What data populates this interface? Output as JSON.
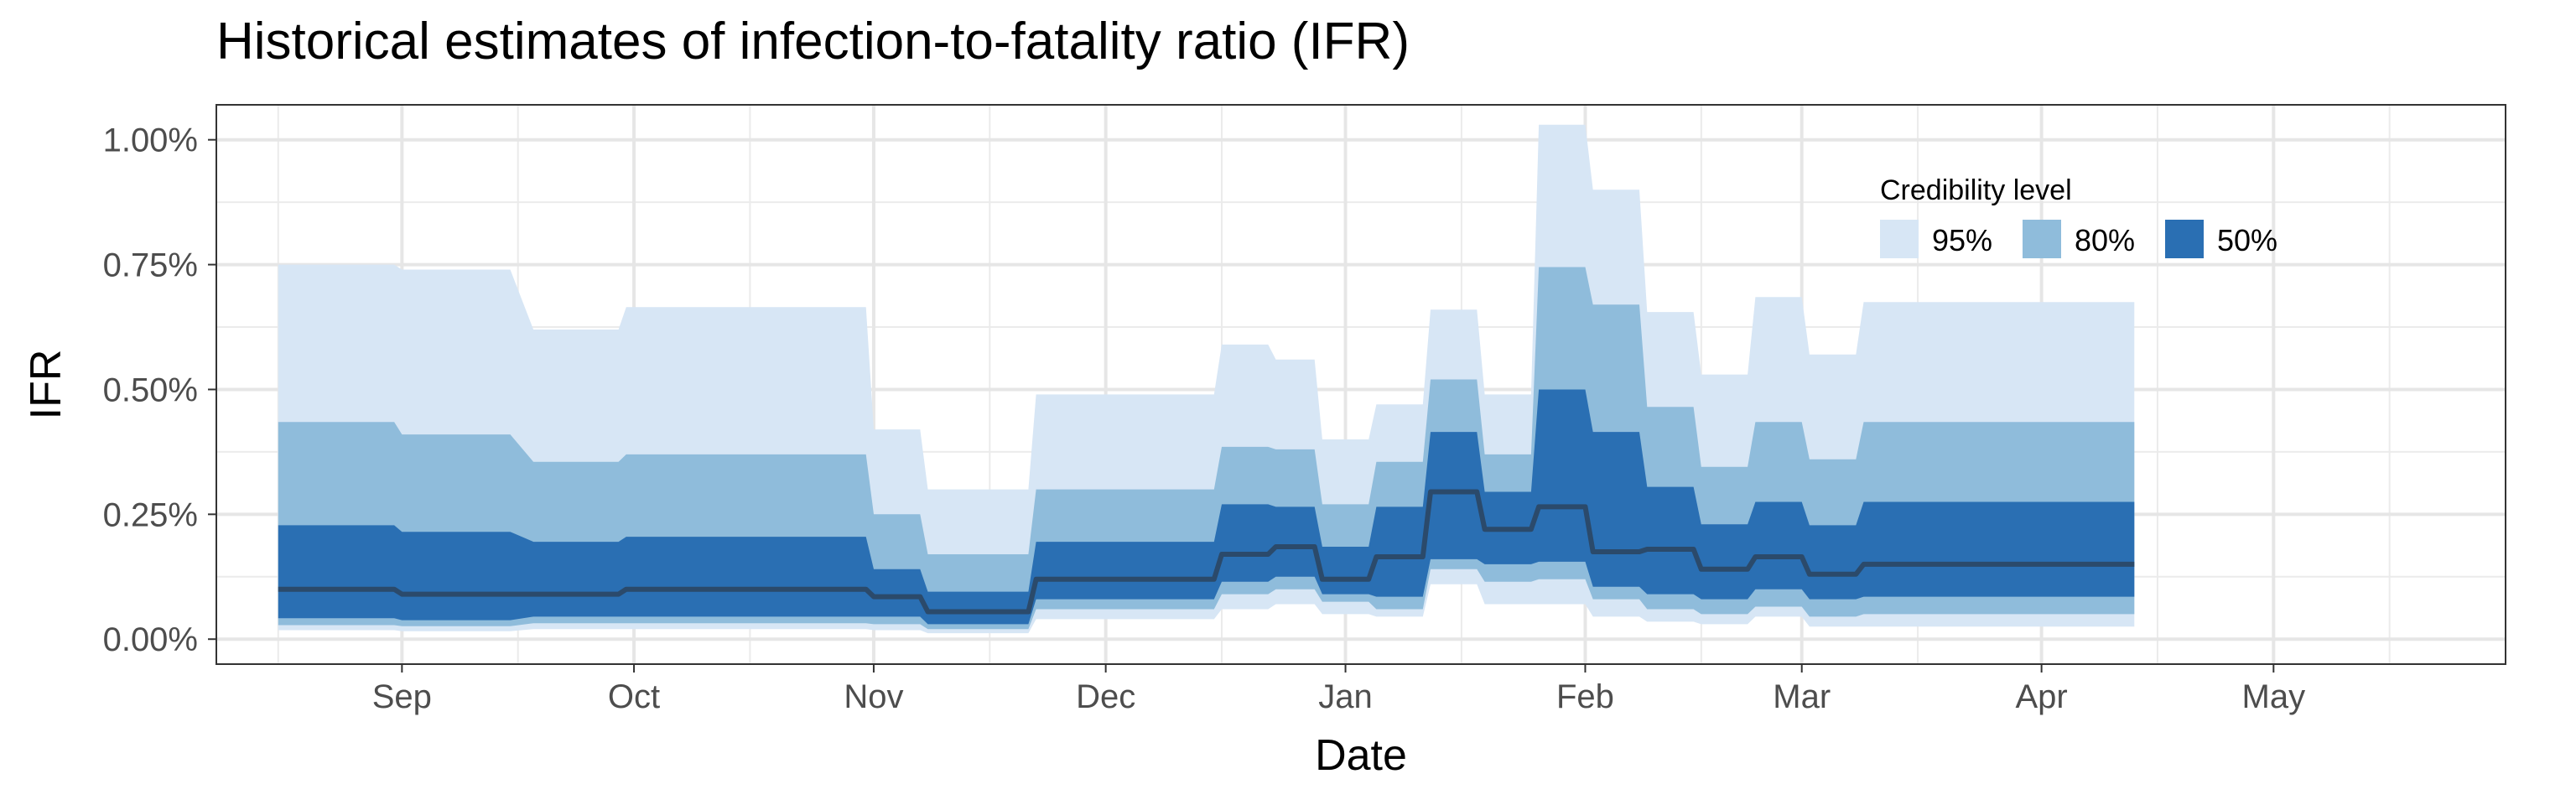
{
  "chart_data": {
    "type": "area",
    "title": "Historical estimates of infection-to-fatality ratio (IFR)",
    "xlabel": "Date",
    "ylabel": "IFR",
    "x_ticks": [
      "Sep",
      "Oct",
      "Nov",
      "Dec",
      "Jan",
      "Feb",
      "Mar",
      "Apr",
      "May"
    ],
    "y_ticks": [
      "0.00%",
      "0.25%",
      "0.50%",
      "0.75%",
      "1.00%"
    ],
    "y_tick_values": [
      0,
      0.25,
      0.5,
      0.75,
      1.0
    ],
    "ylim": [
      -0.05,
      1.07
    ],
    "xlim": [
      "2020-08-08",
      "2021-05-31"
    ],
    "grid": true,
    "legend": {
      "title": "Credibility level",
      "placement": "top-right",
      "entries": [
        {
          "label": "95%",
          "color": "#d7e6f5"
        },
        {
          "label": "80%",
          "color": "#8fbcdb"
        },
        {
          "label": "50%",
          "color": "#2a6fb3"
        }
      ]
    },
    "median_color": "#2b4a6b",
    "x": [
      "2020-08-16",
      "2020-08-31",
      "2020-09-01",
      "2020-09-15",
      "2020-09-18",
      "2020-09-29",
      "2020-09-30",
      "2020-10-31",
      "2020-11-01",
      "2020-11-07",
      "2020-11-08",
      "2020-11-21",
      "2020-11-22",
      "2020-12-15",
      "2020-12-16",
      "2020-12-22",
      "2020-12-23",
      "2020-12-28",
      "2020-12-29",
      "2021-01-04",
      "2021-01-05",
      "2021-01-11",
      "2021-01-12",
      "2021-01-18",
      "2021-01-19",
      "2021-01-25",
      "2021-01-26",
      "2021-02-01",
      "2021-02-02",
      "2021-02-08",
      "2021-02-09",
      "2021-02-15",
      "2021-02-16",
      "2021-02-22",
      "2021-02-23",
      "2021-03-01",
      "2021-03-02",
      "2021-03-08",
      "2021-03-09",
      "2021-04-13"
    ],
    "series": [
      {
        "name": "95%",
        "upper": [
          0.75,
          0.75,
          0.74,
          0.74,
          0.62,
          0.62,
          0.665,
          0.665,
          0.42,
          0.42,
          0.3,
          0.3,
          0.49,
          0.49,
          0.59,
          0.59,
          0.56,
          0.56,
          0.4,
          0.4,
          0.47,
          0.47,
          0.66,
          0.66,
          0.49,
          0.49,
          1.03,
          1.03,
          0.9,
          0.9,
          0.655,
          0.655,
          0.53,
          0.53,
          0.685,
          0.685,
          0.57,
          0.57,
          0.675,
          0.675
        ],
        "lower": [
          0.018,
          0.018,
          0.016,
          0.016,
          0.02,
          0.02,
          0.02,
          0.02,
          0.018,
          0.018,
          0.012,
          0.012,
          0.04,
          0.04,
          0.06,
          0.06,
          0.07,
          0.07,
          0.05,
          0.05,
          0.045,
          0.045,
          0.11,
          0.11,
          0.07,
          0.07,
          0.07,
          0.07,
          0.045,
          0.045,
          0.035,
          0.035,
          0.03,
          0.03,
          0.045,
          0.045,
          0.025,
          0.025,
          0.025,
          0.025
        ]
      },
      {
        "name": "80%",
        "upper": [
          0.435,
          0.435,
          0.41,
          0.41,
          0.355,
          0.355,
          0.37,
          0.37,
          0.25,
          0.25,
          0.17,
          0.17,
          0.3,
          0.3,
          0.385,
          0.385,
          0.38,
          0.38,
          0.27,
          0.27,
          0.355,
          0.355,
          0.52,
          0.52,
          0.37,
          0.37,
          0.745,
          0.745,
          0.67,
          0.67,
          0.465,
          0.465,
          0.345,
          0.345,
          0.435,
          0.435,
          0.36,
          0.36,
          0.435,
          0.435
        ],
        "lower": [
          0.028,
          0.028,
          0.026,
          0.026,
          0.032,
          0.032,
          0.032,
          0.032,
          0.03,
          0.03,
          0.02,
          0.02,
          0.06,
          0.06,
          0.09,
          0.09,
          0.1,
          0.1,
          0.075,
          0.075,
          0.06,
          0.06,
          0.14,
          0.14,
          0.115,
          0.115,
          0.12,
          0.12,
          0.08,
          0.08,
          0.06,
          0.06,
          0.05,
          0.05,
          0.065,
          0.065,
          0.045,
          0.045,
          0.05,
          0.05
        ]
      },
      {
        "name": "50%",
        "upper": [
          0.228,
          0.228,
          0.215,
          0.215,
          0.195,
          0.195,
          0.205,
          0.205,
          0.14,
          0.14,
          0.095,
          0.095,
          0.195,
          0.195,
          0.27,
          0.27,
          0.265,
          0.265,
          0.185,
          0.185,
          0.265,
          0.265,
          0.415,
          0.415,
          0.295,
          0.295,
          0.5,
          0.5,
          0.415,
          0.415,
          0.305,
          0.305,
          0.23,
          0.23,
          0.275,
          0.275,
          0.228,
          0.228,
          0.275,
          0.275
        ],
        "lower": [
          0.042,
          0.042,
          0.038,
          0.038,
          0.045,
          0.045,
          0.045,
          0.045,
          0.045,
          0.045,
          0.03,
          0.03,
          0.08,
          0.08,
          0.115,
          0.115,
          0.125,
          0.125,
          0.09,
          0.09,
          0.085,
          0.085,
          0.16,
          0.16,
          0.15,
          0.15,
          0.155,
          0.155,
          0.105,
          0.105,
          0.09,
          0.09,
          0.08,
          0.08,
          0.1,
          0.1,
          0.08,
          0.08,
          0.085,
          0.085
        ]
      },
      {
        "name": "median",
        "values": [
          0.1,
          0.1,
          0.09,
          0.09,
          0.09,
          0.09,
          0.1,
          0.1,
          0.085,
          0.085,
          0.055,
          0.055,
          0.12,
          0.12,
          0.17,
          0.17,
          0.185,
          0.185,
          0.12,
          0.12,
          0.165,
          0.165,
          0.295,
          0.295,
          0.22,
          0.22,
          0.265,
          0.265,
          0.175,
          0.175,
          0.18,
          0.18,
          0.14,
          0.14,
          0.165,
          0.165,
          0.13,
          0.13,
          0.15,
          0.15
        ]
      }
    ]
  }
}
